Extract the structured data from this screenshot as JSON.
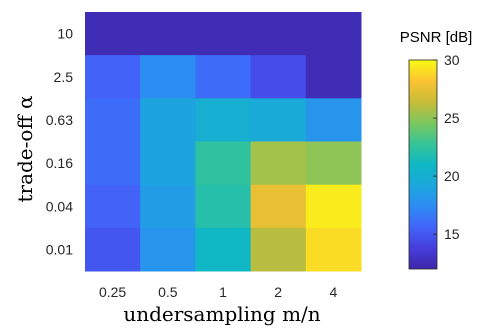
{
  "chart_data": {
    "type": "heatmap",
    "xlabel": "undersampling m/n",
    "ylabel": "trade-off α",
    "x_categories": [
      "0.25",
      "0.5",
      "1",
      "2",
      "4"
    ],
    "y_categories": [
      "10",
      "2.5",
      "0.63",
      "0.16",
      "0.04",
      "0.01"
    ],
    "values": [
      [
        12.5,
        12.5,
        12.5,
        12.5,
        12.5
      ],
      [
        15.5,
        17.5,
        16.0,
        14.5,
        12.5
      ],
      [
        16.0,
        19.0,
        20.0,
        19.5,
        18.0
      ],
      [
        16.0,
        19.0,
        22.5,
        25.5,
        25.0
      ],
      [
        15.5,
        18.5,
        22.0,
        27.5,
        29.5
      ],
      [
        15.0,
        18.0,
        21.0,
        26.0,
        29.0
      ]
    ],
    "colorbar": {
      "title": "PSNR [dB]",
      "range": [
        12,
        30
      ],
      "ticks": [
        "15",
        "20",
        "25",
        "30"
      ],
      "colormap": "parula"
    }
  }
}
